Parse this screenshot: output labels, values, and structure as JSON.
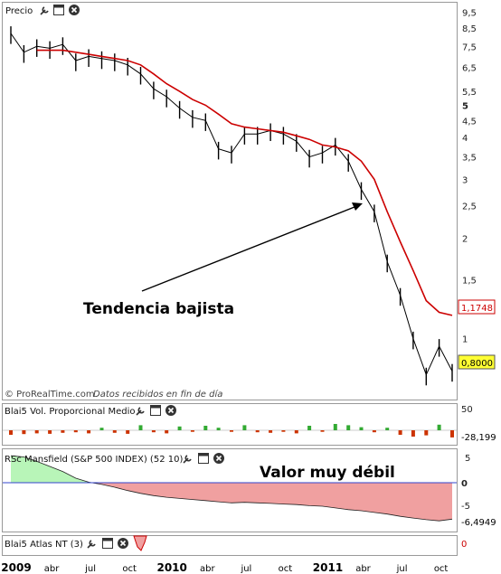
{
  "panels": {
    "price": {
      "title": "Precio",
      "y_ticks": [
        "9,5",
        "8,5",
        "7,5",
        "6,5",
        "5,5",
        "5",
        "4,5",
        "4",
        "3,5",
        "3",
        "2,5",
        "2",
        "1,5",
        "1"
      ],
      "y_values": [
        9.5,
        8.5,
        7.5,
        6.5,
        5.5,
        5,
        4.5,
        4,
        3.5,
        3,
        2.5,
        2,
        1.5,
        1
      ],
      "bold_tick": "5",
      "last_price": "0,8000",
      "ma_value": "1,1748",
      "watermark_brand": "© ProRealTime.com",
      "watermark_note": "Datos recibidos en fin de día",
      "annotation": "Tendencia bajista"
    },
    "volume": {
      "title": "Blai5 Vol. Proporcional Medio",
      "y_tick": "50",
      "value": "-28,199"
    },
    "rsc": {
      "title": "RSc Mansfield (S&P 500 INDEX) (52 10)",
      "y_tick_top": "5",
      "y_tick_zero": "0",
      "y_tick_bottom": "-5",
      "value": "-6,4949",
      "annotation": "Valor muy débil"
    },
    "atlas": {
      "title": "Blai5 Atlas NT (3)",
      "value": "0"
    }
  },
  "x_axis": {
    "labels": [
      "2009",
      "abr",
      "jul",
      "oct",
      "2010",
      "abr",
      "jul",
      "oct",
      "2011",
      "abr",
      "jul",
      "oct"
    ],
    "bold": [
      "2009",
      "2010",
      "2011"
    ]
  },
  "colors": {
    "price": "#000000",
    "moving_average": "#cc0000",
    "positive_fill": "#b8f5b8",
    "negative_fill": "#f0a0a0",
    "volume_up": "#33aa33",
    "volume_down": "#cc3300",
    "last_price_bg": "#ffff33",
    "ma_label": "#cc0000"
  },
  "chart_data": [
    {
      "type": "line",
      "scale": "log",
      "x": [
        "2009-01",
        "2009-02",
        "2009-03",
        "2009-04",
        "2009-05",
        "2009-06",
        "2009-07",
        "2009-08",
        "2009-09",
        "2009-10",
        "2009-11",
        "2009-12",
        "2010-01",
        "2010-02",
        "2010-03",
        "2010-04",
        "2010-05",
        "2010-06",
        "2010-07",
        "2010-08",
        "2010-09",
        "2010-10",
        "2010-11",
        "2010-12",
        "2011-01",
        "2011-02",
        "2011-03",
        "2011-04",
        "2011-05",
        "2011-06",
        "2011-07",
        "2011-08",
        "2011-09",
        "2011-10",
        "2011-11"
      ],
      "series": [
        {
          "values": [
            8.2,
            7.2,
            7.5,
            7.4,
            7.6,
            6.8,
            7.0,
            6.9,
            6.8,
            6.6,
            6.2,
            5.6,
            5.3,
            4.9,
            4.6,
            4.5,
            3.7,
            3.6,
            4.1,
            4.1,
            4.2,
            4.1,
            3.9,
            3.5,
            3.6,
            3.8,
            3.4,
            2.8,
            2.4,
            1.7,
            1.35,
            1.0,
            0.78,
            0.95,
            0.8
          ]
        },
        {
          "values": [
            null,
            null,
            7.3,
            7.3,
            7.3,
            7.2,
            7.1,
            7.0,
            6.9,
            6.8,
            6.6,
            6.2,
            5.8,
            5.5,
            5.2,
            5.0,
            4.7,
            4.4,
            4.3,
            4.25,
            4.2,
            4.15,
            4.05,
            3.95,
            3.8,
            3.75,
            3.65,
            3.4,
            3.0,
            2.4,
            1.95,
            1.6,
            1.3,
            1.2,
            1.1748
          ]
        }
      ],
      "ylim": [
        0.7,
        9.7
      ]
    },
    {
      "type": "bar",
      "x": [
        "2009-01",
        "2009-02",
        "2009-03",
        "2009-04",
        "2009-05",
        "2009-06",
        "2009-07",
        "2009-08",
        "2009-09",
        "2009-10",
        "2009-11",
        "2009-12",
        "2010-01",
        "2010-02",
        "2010-03",
        "2010-04",
        "2010-05",
        "2010-06",
        "2010-07",
        "2010-08",
        "2010-09",
        "2010-10",
        "2010-11",
        "2010-12",
        "2011-01",
        "2011-02",
        "2011-03",
        "2011-04",
        "2011-05",
        "2011-06",
        "2011-07",
        "2011-08",
        "2011-09",
        "2011-10",
        "2011-11"
      ],
      "values": [
        -18,
        -15,
        -12,
        -14,
        -10,
        -8,
        -12,
        10,
        -10,
        -14,
        20,
        -8,
        -12,
        15,
        -6,
        18,
        10,
        -6,
        20,
        -8,
        -10,
        -6,
        -12,
        18,
        -6,
        25,
        20,
        12,
        -8,
        10,
        -18,
        -25,
        -20,
        22,
        -28.199
      ],
      "ylim": [
        -40,
        60
      ]
    },
    {
      "type": "area",
      "x": [
        "2009-01",
        "2009-02",
        "2009-03",
        "2009-04",
        "2009-05",
        "2009-06",
        "2009-07",
        "2009-08",
        "2009-09",
        "2009-10",
        "2009-11",
        "2009-12",
        "2010-01",
        "2010-02",
        "2010-03",
        "2010-04",
        "2010-05",
        "2010-06",
        "2010-07",
        "2010-08",
        "2010-09",
        "2010-10",
        "2010-11",
        "2010-12",
        "2011-01",
        "2011-02",
        "2011-03",
        "2011-04",
        "2011-05",
        "2011-06",
        "2011-07",
        "2011-08",
        "2011-09",
        "2011-10",
        "2011-11"
      ],
      "values": [
        4.8,
        4.6,
        3.8,
        2.9,
        2.0,
        0.8,
        0.1,
        -0.3,
        -0.8,
        -1.4,
        -1.9,
        -2.3,
        -2.6,
        -2.8,
        -3.0,
        -3.2,
        -3.4,
        -3.6,
        -3.5,
        -3.6,
        -3.7,
        -3.8,
        -3.9,
        -4.1,
        -4.2,
        -4.5,
        -4.8,
        -5.0,
        -5.3,
        -5.6,
        -6.0,
        -6.3,
        -6.6,
        -6.8,
        -6.4949
      ],
      "ylim": [
        -7.5,
        6
      ]
    }
  ]
}
